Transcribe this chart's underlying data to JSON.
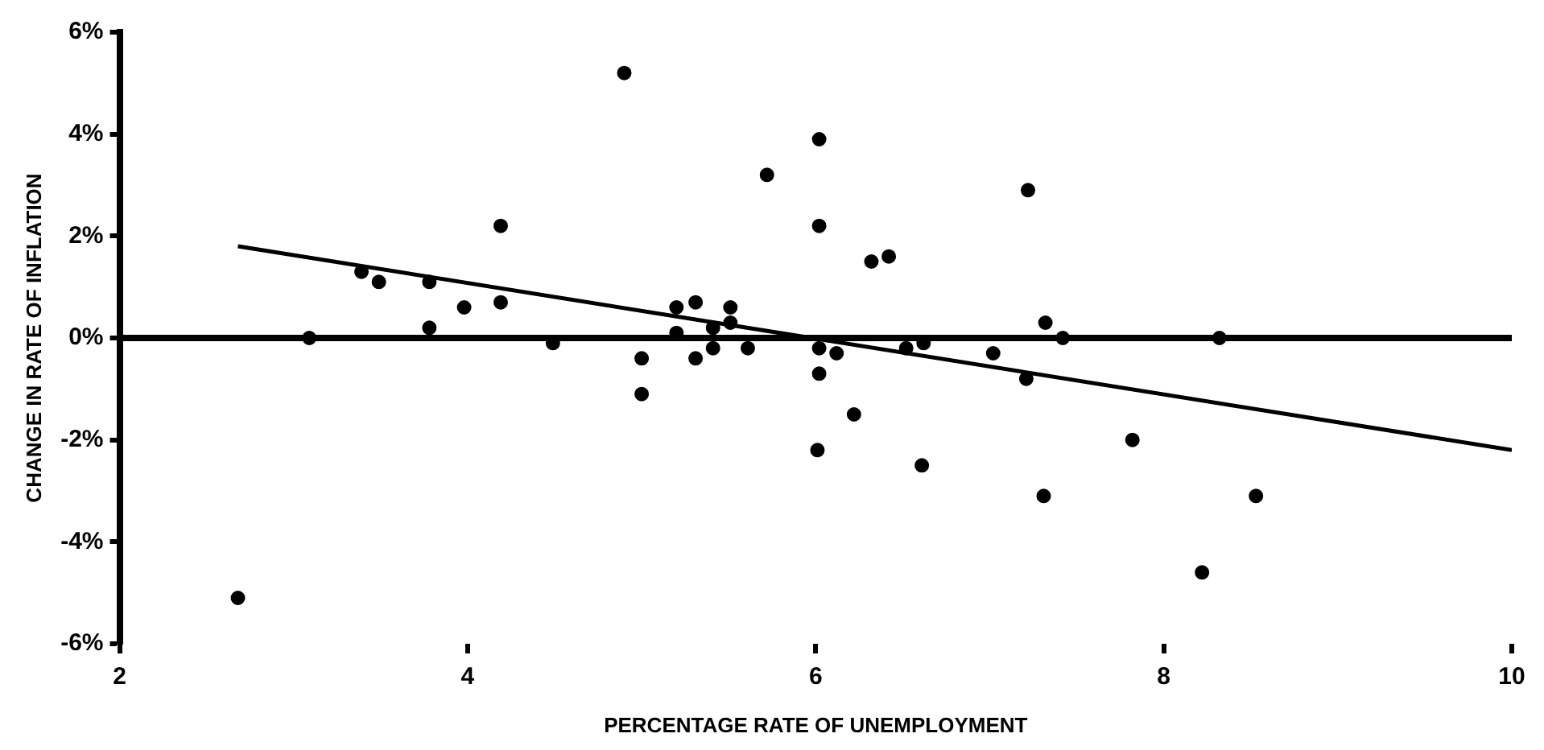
{
  "chart_data": {
    "type": "scatter",
    "xlabel": "PERCENTAGE RATE OF UNEMPLOYMENT",
    "ylabel": "CHANGE IN RATE OF INFLATION",
    "xlim": [
      2,
      10
    ],
    "xticks": [
      2,
      4,
      6,
      8,
      10
    ],
    "ylim": [
      -6,
      6
    ],
    "yticks": [
      {
        "value": -6,
        "label": "-6%"
      },
      {
        "value": -4,
        "label": "-4%"
      },
      {
        "value": -2,
        "label": "-2%"
      },
      {
        "value": 0,
        "label": "0%"
      },
      {
        "value": 2,
        "label": "2%"
      },
      {
        "value": 4,
        "label": "4%"
      },
      {
        "value": 6,
        "label": "6%"
      }
    ],
    "grid": false,
    "legend": false,
    "marker": "circle",
    "ref_lines": [
      {
        "axis": "y",
        "value": 0,
        "color": "#000000"
      }
    ],
    "series": [
      {
        "type": "scatter",
        "color": "#000000",
        "x": [
          2.68,
          3.09,
          3.39,
          3.49,
          3.78,
          3.78,
          3.98,
          4.19,
          4.19,
          4.49,
          4.9,
          5.0,
          5.0,
          5.2,
          5.2,
          5.31,
          5.31,
          5.41,
          5.41,
          5.51,
          5.51,
          5.61,
          5.72,
          6.02,
          6.02,
          6.02,
          6.02,
          6.01,
          6.12,
          6.22,
          6.32,
          6.42,
          6.52,
          6.61,
          6.62,
          7.02,
          7.21,
          7.22,
          7.31,
          7.32,
          7.42,
          7.82,
          8.22,
          8.32,
          8.53
        ],
        "values": [
          -5.1,
          0.0,
          1.3,
          1.1,
          1.1,
          0.2,
          0.6,
          0.7,
          2.2,
          -0.1,
          5.2,
          -0.4,
          -1.1,
          0.6,
          0.1,
          0.7,
          -0.4,
          0.2,
          -0.2,
          0.6,
          0.3,
          -0.2,
          3.2,
          3.9,
          2.2,
          -0.2,
          -0.7,
          -2.2,
          -0.3,
          -1.5,
          1.5,
          1.6,
          -0.2,
          -2.5,
          -0.1,
          -0.3,
          -0.8,
          2.9,
          -3.1,
          0.3,
          0.0,
          -2.0,
          -4.6,
          0.0,
          -3.1
        ]
      },
      {
        "type": "line",
        "color": "#000000",
        "marker": "none",
        "x": [
          2.68,
          10
        ],
        "values": [
          1.8,
          -2.2
        ]
      }
    ]
  }
}
